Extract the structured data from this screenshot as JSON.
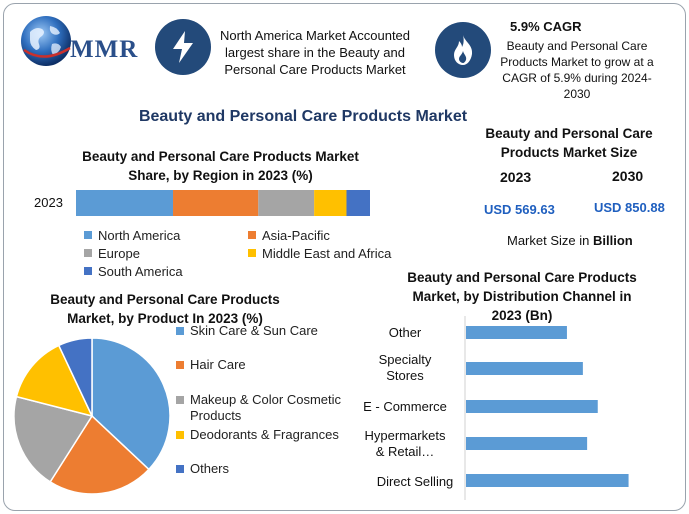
{
  "brand": {
    "logo_text": "MMR"
  },
  "header": {
    "box1_text": "North America Market Accounted largest share in the Beauty and Personal Care Products Market",
    "box2_title": "5.9% CAGR",
    "box2_text": "Beauty and Personal Care Products Market to grow at a CAGR of 5.9% during 2024-2030",
    "icon1": "lightning-icon",
    "icon2": "flame-icon"
  },
  "main_title": "Beauty and Personal Care Products Market",
  "market_size": {
    "title": "Beauty and Personal Care Products Market Size",
    "year1": "2023",
    "year2": "2030",
    "value1": "USD 569.63",
    "value2": "USD 850.88",
    "unit_note_prefix": "Market Size in ",
    "unit_note_bold": "Billion"
  },
  "colors": {
    "blue": "#5b9bd5",
    "orange": "#ed7d31",
    "gray": "#a5a5a5",
    "yellow": "#ffc000",
    "dark_blue": "#4472c4",
    "navy": "#234a7a",
    "title_navy": "#1f3864"
  },
  "chart_data": [
    {
      "type": "bar",
      "orientation": "horizontal-stacked",
      "title": "Beauty and Personal Care Products Market Share, by Region in 2023 (%)",
      "categories": [
        "2023"
      ],
      "series": [
        {
          "name": "North America",
          "values": [
            33
          ],
          "color": "#5b9bd5"
        },
        {
          "name": "Asia-Pacific",
          "values": [
            29
          ],
          "color": "#ed7d31"
        },
        {
          "name": "Europe",
          "values": [
            19
          ],
          "color": "#a5a5a5"
        },
        {
          "name": "Middle East and Africa",
          "values": [
            11
          ],
          "color": "#ffc000"
        },
        {
          "name": "South America",
          "values": [
            8
          ],
          "color": "#4472c4"
        }
      ],
      "xlim": [
        0,
        100
      ],
      "legend": "bottom"
    },
    {
      "type": "pie",
      "title": "Beauty and Personal Care Products Market, by Product In 2023 (%)",
      "labels": [
        "Skin Care & Sun Care",
        "Hair Care",
        "Makeup & Color Cosmetic Products",
        "Deodorants & Fragrances",
        "Others"
      ],
      "values": [
        37,
        22,
        20,
        14,
        7
      ],
      "colors": [
        "#5b9bd5",
        "#ed7d31",
        "#a5a5a5",
        "#ffc000",
        "#4472c4"
      ],
      "legend": "right"
    },
    {
      "type": "bar",
      "orientation": "horizontal",
      "title": "Beauty and Personal Care Products Market, by Distribution Channel in 2023 (Bn)",
      "categories": [
        "Other",
        "Specialty Stores",
        "E - Commerce",
        "Hypermarkets & Retail…",
        "Direct Selling"
      ],
      "values": [
        95,
        110,
        124,
        114,
        153
      ],
      "color": "#5b9bd5",
      "xlim": [
        0,
        160
      ]
    }
  ]
}
